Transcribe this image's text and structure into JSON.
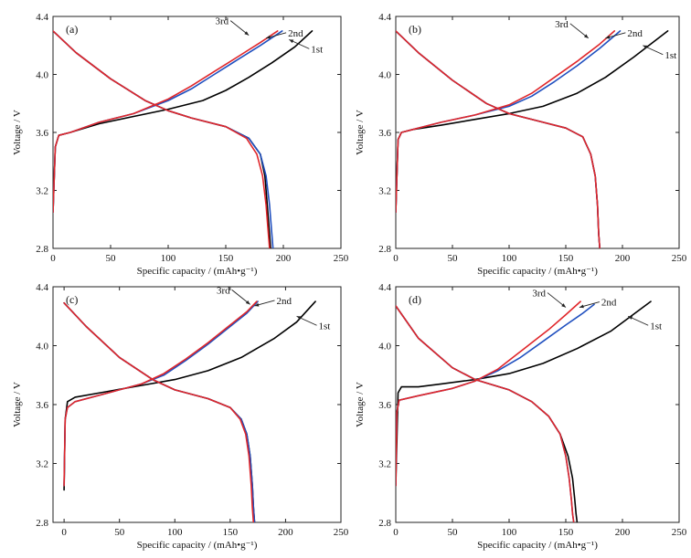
{
  "chart_data": [
    {
      "type": "line",
      "panel_label": "(a)",
      "xlabel": "Specific capacity / (mAh•g⁻¹)",
      "ylabel": "Voltage / V",
      "xlim": [
        0,
        250
      ],
      "ylim": [
        2.8,
        4.4
      ],
      "xticks": [
        0,
        50,
        100,
        150,
        200,
        250
      ],
      "yticks": [
        2.8,
        3.2,
        3.6,
        4.0,
        4.4
      ],
      "ytick_labels": [
        "2.8",
        "3.2",
        "3.6",
        "4.0",
        "4.4"
      ],
      "legend_labels": [
        {
          "text": "1st",
          "series": "1st",
          "at": [
            205,
            4.24
          ],
          "dir": "left"
        },
        {
          "text": "2nd",
          "series": "2nd",
          "at": [
            185,
            4.25
          ],
          "dir": "left"
        },
        {
          "text": "3rd",
          "series": "3rd",
          "at": [
            170,
            4.27
          ],
          "dir": "right"
        }
      ],
      "series": [
        {
          "name": "1st",
          "color": "#000000",
          "charge": {
            "x": [
              0,
              2,
              5,
              15,
              40,
              70,
              100,
              130,
              150,
              170,
              190,
              210,
              225
            ],
            "y": [
              3.05,
              3.5,
              3.58,
              3.6,
              3.66,
              3.71,
              3.76,
              3.82,
              3.89,
              3.98,
              4.08,
              4.19,
              4.3
            ]
          },
          "discharge": {
            "x": [
              0,
              20,
              50,
              80,
              100,
              120,
              150,
              170,
              180,
              184,
              186,
              188,
              189
            ],
            "y": [
              4.3,
              4.15,
              3.97,
              3.82,
              3.75,
              3.7,
              3.64,
              3.56,
              3.45,
              3.3,
              3.1,
              2.9,
              2.8
            ]
          }
        },
        {
          "name": "2nd",
          "color": "#1f4fbf",
          "charge": {
            "x": [
              0,
              2,
              5,
              15,
              40,
              70,
              100,
              120,
              140,
              160,
              180,
              199
            ],
            "y": [
              3.05,
              3.5,
              3.58,
              3.6,
              3.67,
              3.73,
              3.82,
              3.9,
              4.0,
              4.1,
              4.2,
              4.3
            ]
          },
          "discharge": {
            "x": [
              0,
              20,
              50,
              80,
              100,
              120,
              150,
              170,
              180,
              185,
              188,
              190,
              191
            ],
            "y": [
              4.3,
              4.15,
              3.97,
              3.82,
              3.75,
              3.7,
              3.64,
              3.56,
              3.45,
              3.3,
              3.1,
              2.9,
              2.8
            ]
          }
        },
        {
          "name": "3rd",
          "color": "#e0262a",
          "charge": {
            "x": [
              0,
              2,
              5,
              15,
              40,
              70,
              100,
              120,
              140,
              160,
              180,
              195
            ],
            "y": [
              3.05,
              3.5,
              3.58,
              3.6,
              3.67,
              3.73,
              3.83,
              3.92,
              4.02,
              4.12,
              4.22,
              4.3
            ]
          },
          "discharge": {
            "x": [
              0,
              20,
              50,
              80,
              100,
              120,
              150,
              168,
              177,
              182,
              185,
              187,
              188
            ],
            "y": [
              4.3,
              4.15,
              3.97,
              3.82,
              3.75,
              3.7,
              3.64,
              3.56,
              3.45,
              3.3,
              3.1,
              2.9,
              2.8
            ]
          }
        }
      ]
    },
    {
      "type": "line",
      "panel_label": "(b)",
      "xlabel": "Specific capacity / (mAh•g⁻¹)",
      "ylabel": "Voltage / V",
      "xlim": [
        0,
        250
      ],
      "ylim": [
        2.8,
        4.4
      ],
      "xticks": [
        0,
        50,
        100,
        150,
        200,
        250
      ],
      "yticks": [
        2.8,
        3.2,
        3.6,
        4.0,
        4.4
      ],
      "ytick_labels": [
        "2.8",
        "3.2",
        "3.6",
        "4.0",
        "4.4"
      ],
      "legend_labels": [
        {
          "text": "1st",
          "series": "1st",
          "at": [
            218,
            4.2
          ],
          "dir": "left"
        },
        {
          "text": "2nd",
          "series": "2nd",
          "at": [
            185,
            4.25
          ],
          "dir": "left"
        },
        {
          "text": "3rd",
          "series": "3rd",
          "at": [
            170,
            4.25
          ],
          "dir": "right"
        }
      ],
      "series": [
        {
          "name": "1st",
          "color": "#000000",
          "charge": {
            "x": [
              0,
              2,
              5,
              15,
              40,
              70,
              100,
              130,
              160,
              185,
              210,
              240
            ],
            "y": [
              3.05,
              3.55,
              3.6,
              3.62,
              3.65,
              3.69,
              3.73,
              3.78,
              3.87,
              3.98,
              4.12,
              4.3
            ]
          },
          "discharge": {
            "x": [
              0,
              20,
              50,
              80,
              100,
              130,
              150,
              165,
              172,
              176,
              178,
              179,
              180
            ],
            "y": [
              4.3,
              4.15,
              3.96,
              3.8,
              3.73,
              3.67,
              3.63,
              3.57,
              3.45,
              3.3,
              3.1,
              2.9,
              2.8
            ]
          }
        },
        {
          "name": "2nd",
          "color": "#1f4fbf",
          "charge": {
            "x": [
              0,
              2,
              5,
              15,
              40,
              70,
              100,
              120,
              140,
              160,
              180,
              198
            ],
            "y": [
              3.05,
              3.55,
              3.6,
              3.62,
              3.67,
              3.72,
              3.78,
              3.85,
              3.95,
              4.06,
              4.18,
              4.3
            ]
          },
          "discharge": {
            "x": [
              0,
              20,
              50,
              80,
              100,
              130,
              150,
              165,
              172,
              176,
              178,
              179,
              180
            ],
            "y": [
              4.3,
              4.15,
              3.96,
              3.8,
              3.73,
              3.67,
              3.63,
              3.57,
              3.45,
              3.3,
              3.1,
              2.9,
              2.8
            ]
          }
        },
        {
          "name": "3rd",
          "color": "#e0262a",
          "charge": {
            "x": [
              0,
              2,
              5,
              15,
              40,
              70,
              100,
              120,
              140,
              160,
              180,
              193
            ],
            "y": [
              3.05,
              3.55,
              3.6,
              3.62,
              3.67,
              3.72,
              3.79,
              3.87,
              3.98,
              4.09,
              4.21,
              4.3
            ]
          },
          "discharge": {
            "x": [
              0,
              20,
              50,
              80,
              100,
              130,
              150,
              165,
              172,
              176,
              178,
              179,
              180
            ],
            "y": [
              4.3,
              4.15,
              3.96,
              3.8,
              3.73,
              3.67,
              3.63,
              3.57,
              3.45,
              3.3,
              3.1,
              2.9,
              2.8
            ]
          }
        }
      ]
    },
    {
      "type": "line",
      "panel_label": "(c)",
      "xlabel": "Specific capacity / (mAh•g⁻¹)",
      "ylabel": "Voltage / V",
      "xlim": [
        -10,
        250
      ],
      "ylim": [
        2.8,
        4.4
      ],
      "xticks": [
        0,
        50,
        100,
        150,
        200,
        250
      ],
      "yticks": [
        2.8,
        3.2,
        3.6,
        4.0,
        4.4
      ],
      "ytick_labels": [
        "2.8",
        "3.2",
        "3.6",
        "4.0",
        "4.4"
      ],
      "legend_labels": [
        {
          "text": "1st",
          "series": "1st",
          "at": [
            210,
            4.2
          ],
          "dir": "left"
        },
        {
          "text": "2nd",
          "series": "2nd",
          "at": [
            172,
            4.27
          ],
          "dir": "left"
        },
        {
          "text": "3rd",
          "series": "3rd",
          "at": [
            168,
            4.28
          ],
          "dir": "right"
        }
      ],
      "series": [
        {
          "name": "1st",
          "color": "#000000",
          "charge": {
            "x": [
              0,
              1,
              3,
              10,
              40,
              70,
              100,
              130,
              160,
              190,
              210,
              227
            ],
            "y": [
              3.02,
              3.5,
              3.62,
              3.65,
              3.69,
              3.73,
              3.77,
              3.83,
              3.92,
              4.05,
              4.16,
              4.3
            ]
          },
          "discharge": {
            "x": [
              0,
              20,
              50,
              80,
              100,
              130,
              150,
              160,
              165,
              168,
              170,
              171,
              172
            ],
            "y": [
              4.29,
              4.13,
              3.92,
              3.77,
              3.7,
              3.64,
              3.58,
              3.5,
              3.4,
              3.25,
              3.05,
              2.9,
              2.8
            ]
          }
        },
        {
          "name": "2nd",
          "color": "#1f4fbf",
          "charge": {
            "x": [
              0,
              1,
              3,
              10,
              40,
              70,
              90,
              110,
              130,
              150,
              165,
              175
            ],
            "y": [
              3.05,
              3.5,
              3.58,
              3.62,
              3.68,
              3.74,
              3.8,
              3.9,
              4.01,
              4.13,
              4.22,
              4.3
            ]
          },
          "discharge": {
            "x": [
              0,
              20,
              50,
              80,
              100,
              130,
              150,
              160,
              165,
              168,
              170,
              171,
              172
            ],
            "y": [
              4.29,
              4.13,
              3.92,
              3.77,
              3.7,
              3.64,
              3.58,
              3.5,
              3.4,
              3.25,
              3.05,
              2.9,
              2.8
            ]
          }
        },
        {
          "name": "3rd",
          "color": "#e0262a",
          "charge": {
            "x": [
              0,
              1,
              3,
              10,
              40,
              70,
              90,
              110,
              130,
              150,
              165,
              174
            ],
            "y": [
              3.05,
              3.5,
              3.58,
              3.62,
              3.68,
              3.74,
              3.81,
              3.91,
              4.02,
              4.14,
              4.23,
              4.3
            ]
          },
          "discharge": {
            "x": [
              0,
              20,
              50,
              80,
              100,
              130,
              150,
              159,
              164,
              167,
              169,
              170,
              171
            ],
            "y": [
              4.29,
              4.13,
              3.92,
              3.77,
              3.7,
              3.64,
              3.58,
              3.5,
              3.4,
              3.25,
              3.05,
              2.9,
              2.8
            ]
          }
        }
      ]
    },
    {
      "type": "line",
      "panel_label": "(d)",
      "xlabel": "Specific capacity / (mAh•g⁻¹)",
      "ylabel": "Voltage / V",
      "xlim": [
        0,
        250
      ],
      "ylim": [
        2.8,
        4.4
      ],
      "xticks": [
        0,
        50,
        100,
        150,
        200,
        250
      ],
      "yticks": [
        2.8,
        3.2,
        3.6,
        4.0,
        4.4
      ],
      "ytick_labels": [
        "2.8",
        "3.2",
        "3.6",
        "4.0",
        "4.4"
      ],
      "legend_labels": [
        {
          "text": "1st",
          "series": "1st",
          "at": [
            205,
            4.2
          ],
          "dir": "left"
        },
        {
          "text": "2nd",
          "series": "2nd",
          "at": [
            162,
            4.26
          ],
          "dir": "left"
        },
        {
          "text": "3rd",
          "series": "3rd",
          "at": [
            150,
            4.26
          ],
          "dir": "right"
        }
      ],
      "series": [
        {
          "name": "1st",
          "color": "#000000",
          "charge": {
            "x": [
              0,
              2,
              5,
              20,
              40,
              70,
              100,
              130,
              160,
              190,
              225
            ],
            "y": [
              3.05,
              3.68,
              3.72,
              3.72,
              3.74,
              3.77,
              3.81,
              3.88,
              3.98,
              4.1,
              4.3
            ]
          },
          "discharge": {
            "x": [
              0,
              20,
              50,
              70,
              100,
              120,
              135,
              145,
              152,
              156,
              158,
              159,
              160
            ],
            "y": [
              4.27,
              4.05,
              3.85,
              3.77,
              3.7,
              3.62,
              3.52,
              3.4,
              3.25,
              3.1,
              2.95,
              2.86,
              2.8
            ]
          }
        },
        {
          "name": "2nd",
          "color": "#1f4fbf",
          "charge": {
            "x": [
              0,
              1,
              3,
              20,
              50,
              70,
              90,
              110,
              130,
              150,
              165,
              175
            ],
            "y": [
              3.05,
              3.55,
              3.63,
              3.66,
              3.71,
              3.76,
              3.83,
              3.92,
              4.03,
              4.14,
              4.22,
              4.28
            ]
          },
          "discharge": {
            "x": [
              0,
              20,
              50,
              70,
              100,
              120,
              135,
              145,
              150,
              153,
              155,
              156,
              157
            ],
            "y": [
              4.27,
              4.05,
              3.85,
              3.77,
              3.7,
              3.62,
              3.52,
              3.4,
              3.25,
              3.1,
              2.95,
              2.86,
              2.8
            ]
          }
        },
        {
          "name": "3rd",
          "color": "#e0262a",
          "charge": {
            "x": [
              0,
              1,
              3,
              20,
              50,
              70,
              90,
              105,
              120,
              135,
              150,
              163
            ],
            "y": [
              3.05,
              3.55,
              3.63,
              3.66,
              3.71,
              3.76,
              3.84,
              3.93,
              4.02,
              4.11,
              4.21,
              4.3
            ]
          },
          "discharge": {
            "x": [
              0,
              20,
              50,
              70,
              100,
              120,
              135,
              145,
              150,
              153,
              155,
              156,
              157
            ],
            "y": [
              4.27,
              4.05,
              3.85,
              3.77,
              3.7,
              3.62,
              3.52,
              3.4,
              3.25,
              3.1,
              2.95,
              2.86,
              2.8
            ]
          }
        }
      ]
    }
  ]
}
